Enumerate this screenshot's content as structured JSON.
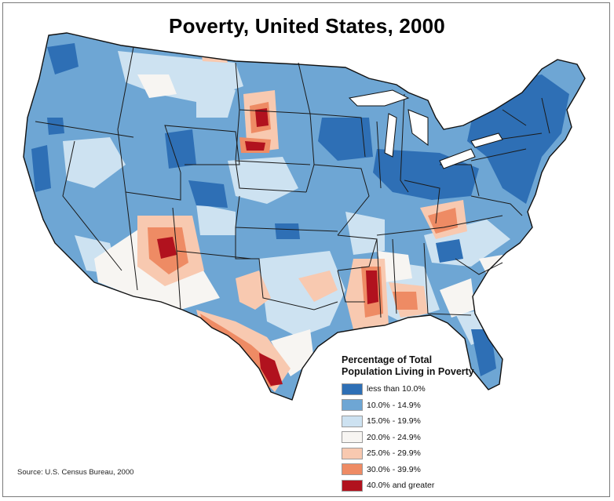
{
  "title": "Poverty, United States, 2000",
  "source": "Source:  U.S. Census Bureau, 2000",
  "legend": {
    "title_line1": "Percentage of Total",
    "title_line2": "Population Living in Poverty",
    "items": [
      {
        "label": "less than 10.0%",
        "color": "#2e6fb5"
      },
      {
        "label": "10.0% - 14.9%",
        "color": "#6ea6d4"
      },
      {
        "label": "15.0% - 19.9%",
        "color": "#cde2f1"
      },
      {
        "label": "20.0% - 24.9%",
        "color": "#f7f5f2"
      },
      {
        "label": "25.0% - 29.9%",
        "color": "#f8c9b0"
      },
      {
        "label": "30.0% - 39.9%",
        "color": "#ee8b64"
      },
      {
        "label": "40.0% and greater",
        "color": "#b1121e"
      }
    ]
  }
}
